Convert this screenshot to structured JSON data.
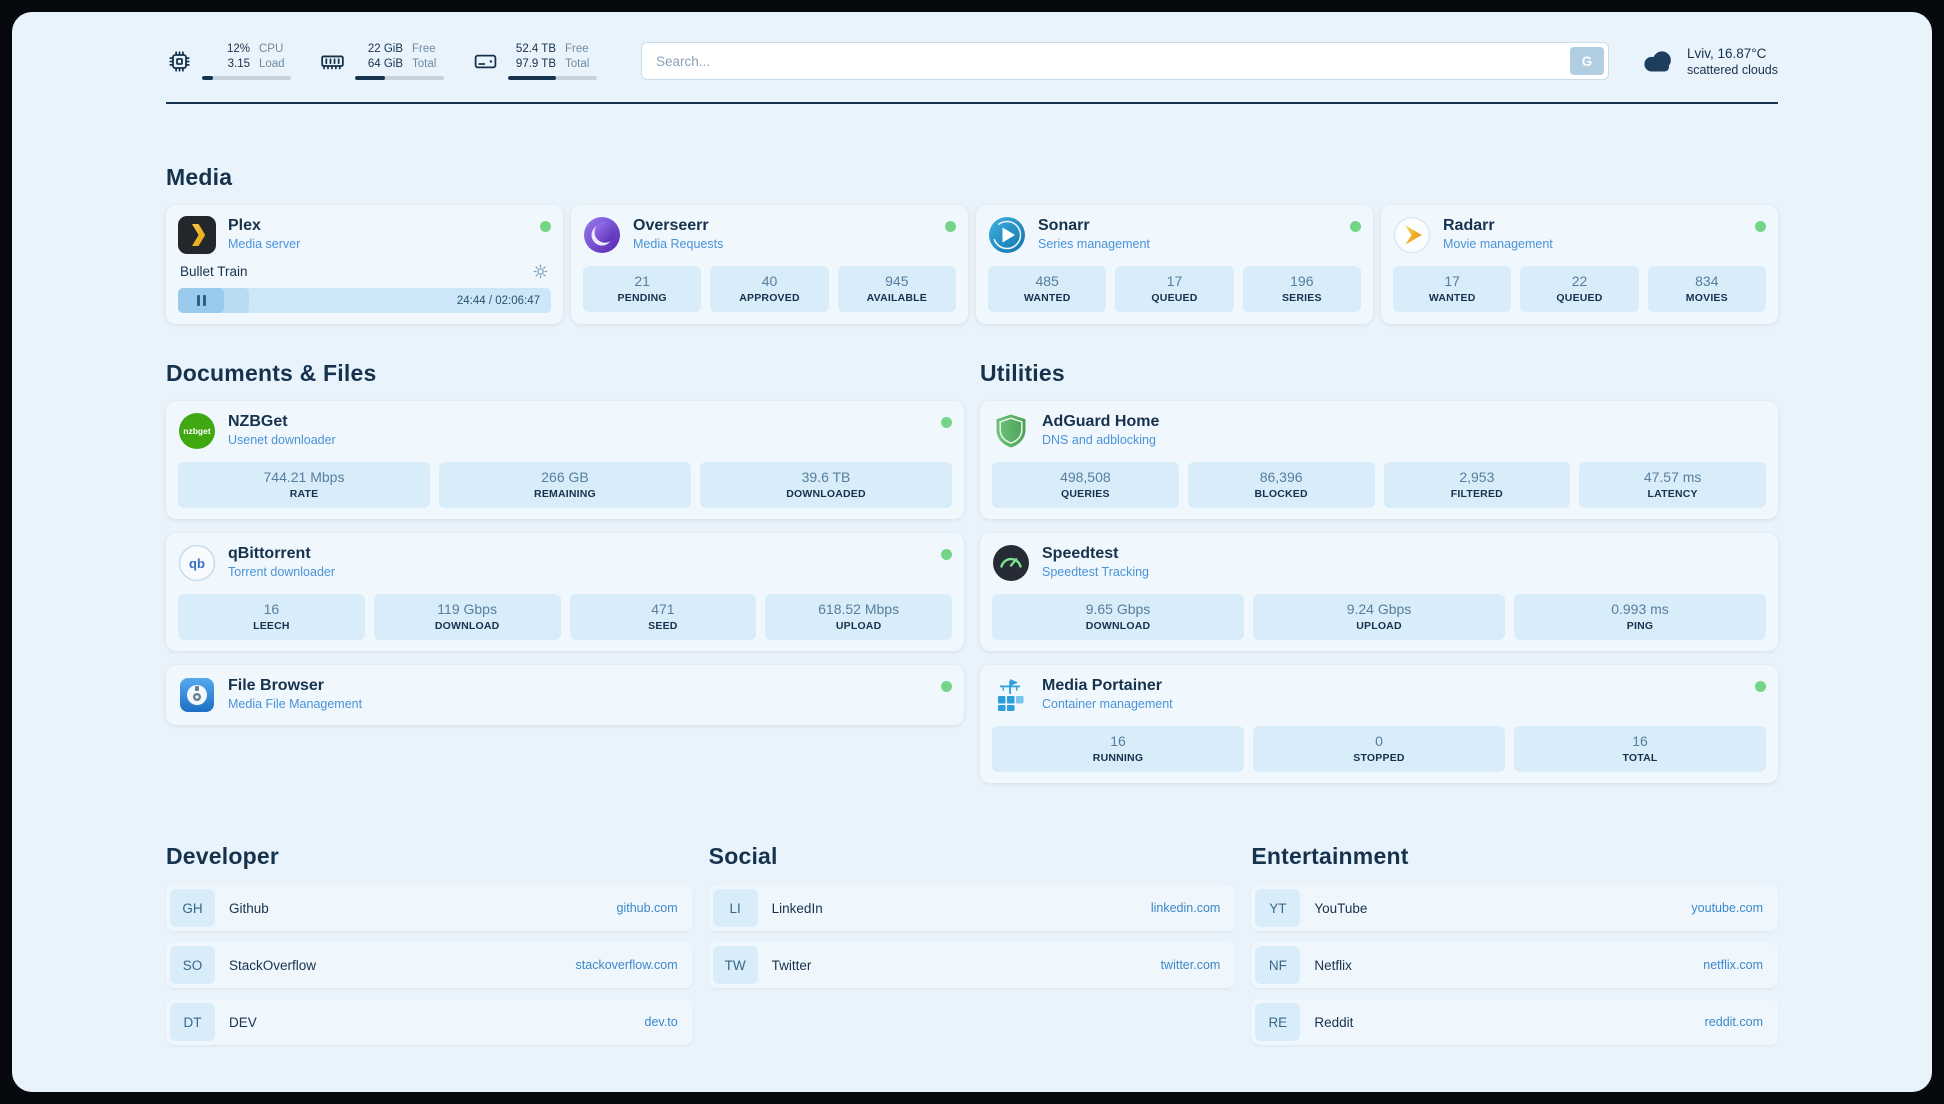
{
  "topbar": {
    "monitors": [
      {
        "id": "cpu",
        "value_top": "12%",
        "value_bottom": "3.15",
        "label_top": "CPU",
        "label_bottom": "Load",
        "progress": 12
      },
      {
        "id": "ram",
        "value_top": "22 GiB",
        "value_bottom": "64 GiB",
        "label_top": "Free",
        "label_bottom": "Total",
        "progress": 34
      },
      {
        "id": "disk",
        "value_top": "52.4 TB",
        "value_bottom": "97.9 TB",
        "label_top": "Free",
        "label_bottom": "Total",
        "progress": 54
      }
    ],
    "search": {
      "placeholder": "Search...",
      "button_label": "G"
    },
    "weather": {
      "location": "Lviv, 16.87°C",
      "condition": "scattered clouds"
    }
  },
  "media": {
    "title": "Media",
    "cards": [
      {
        "id": "plex",
        "icon": "plex",
        "name": "Plex",
        "subtitle": "Media server",
        "status": "online",
        "player": {
          "title": "Bullet Train",
          "time": "24:44 / 02:06:47",
          "progress": 19
        }
      },
      {
        "id": "overseerr",
        "icon": "overseerr",
        "name": "Overseerr",
        "subtitle": "Media Requests",
        "status": "online",
        "stats": [
          {
            "value": "21",
            "label": "PENDING"
          },
          {
            "value": "40",
            "label": "APPROVED"
          },
          {
            "value": "945",
            "label": "AVAILABLE"
          }
        ]
      },
      {
        "id": "sonarr",
        "icon": "sonarr",
        "name": "Sonarr",
        "subtitle": "Series management",
        "status": "online",
        "stats": [
          {
            "value": "485",
            "label": "WANTED"
          },
          {
            "value": "17",
            "label": "QUEUED"
          },
          {
            "value": "196",
            "label": "SERIES"
          }
        ]
      },
      {
        "id": "radarr",
        "icon": "radarr",
        "name": "Radarr",
        "subtitle": "Movie management",
        "status": "online",
        "stats": [
          {
            "value": "17",
            "label": "WANTED"
          },
          {
            "value": "22",
            "label": "QUEUED"
          },
          {
            "value": "834",
            "label": "MOVIES"
          }
        ]
      }
    ]
  },
  "documents": {
    "title": "Documents & Files",
    "cards": [
      {
        "id": "nzbget",
        "icon": "nzbget",
        "name": "NZBGet",
        "subtitle": "Usenet downloader",
        "status": "online",
        "stats": [
          {
            "value": "744.21 Mbps",
            "label": "RATE"
          },
          {
            "value": "266 GB",
            "label": "REMAINING"
          },
          {
            "value": "39.6 TB",
            "label": "DOWNLOADED"
          }
        ]
      },
      {
        "id": "qbittorrent",
        "icon": "qbittorrent",
        "name": "qBittorrent",
        "subtitle": "Torrent downloader",
        "status": "online",
        "stats": [
          {
            "value": "16",
            "label": "LEECH"
          },
          {
            "value": "119 Gbps",
            "label": "DOWNLOAD"
          },
          {
            "value": "471",
            "label": "SEED"
          },
          {
            "value": "618.52 Mbps",
            "label": "UPLOAD"
          }
        ]
      },
      {
        "id": "filebrowser",
        "icon": "filebrowser",
        "name": "File Browser",
        "subtitle": "Media File Management",
        "status": "online"
      }
    ]
  },
  "utilities": {
    "title": "Utilities",
    "cards": [
      {
        "id": "adguard",
        "icon": "adguard",
        "name": "AdGuard Home",
        "subtitle": "DNS and adblocking",
        "stats": [
          {
            "value": "498,508",
            "label": "QUERIES"
          },
          {
            "value": "86,396",
            "label": "BLOCKED"
          },
          {
            "value": "2,953",
            "label": "FILTERED"
          },
          {
            "value": "47.57 ms",
            "label": "LATENCY"
          }
        ]
      },
      {
        "id": "speedtest",
        "icon": "speedtest",
        "name": "Speedtest",
        "subtitle": "Speedtest Tracking",
        "stats": [
          {
            "value": "9.65 Gbps",
            "label": "DOWNLOAD"
          },
          {
            "value": "9.24 Gbps",
            "label": "UPLOAD"
          },
          {
            "value": "0.993 ms",
            "label": "PING"
          }
        ]
      },
      {
        "id": "portainer",
        "icon": "portainer",
        "name": "Media Portainer",
        "subtitle": "Container management",
        "status": "online",
        "stats": [
          {
            "value": "16",
            "label": "RUNNING"
          },
          {
            "value": "0",
            "label": "STOPPED"
          },
          {
            "value": "16",
            "label": "TOTAL"
          }
        ]
      }
    ]
  },
  "bookmarks": {
    "groups": [
      {
        "title": "Developer",
        "items": [
          {
            "abbr": "GH",
            "name": "Github",
            "url": "github.com"
          },
          {
            "abbr": "SO",
            "name": "StackOverflow",
            "url": "stackoverflow.com"
          },
          {
            "abbr": "DT",
            "name": "DEV",
            "url": "dev.to"
          }
        ]
      },
      {
        "title": "Social",
        "items": [
          {
            "abbr": "LI",
            "name": "LinkedIn",
            "url": "linkedin.com"
          },
          {
            "abbr": "TW",
            "name": "Twitter",
            "url": "twitter.com"
          }
        ]
      },
      {
        "title": "Entertainment",
        "items": [
          {
            "abbr": "YT",
            "name": "YouTube",
            "url": "youtube.com"
          },
          {
            "abbr": "NF",
            "name": "Netflix",
            "url": "netflix.com"
          },
          {
            "abbr": "RE",
            "name": "Reddit",
            "url": "reddit.com"
          }
        ]
      }
    ]
  },
  "colors": {
    "accent": "#3c87c9",
    "status_online": "#74d589",
    "navy": "#16324d"
  }
}
